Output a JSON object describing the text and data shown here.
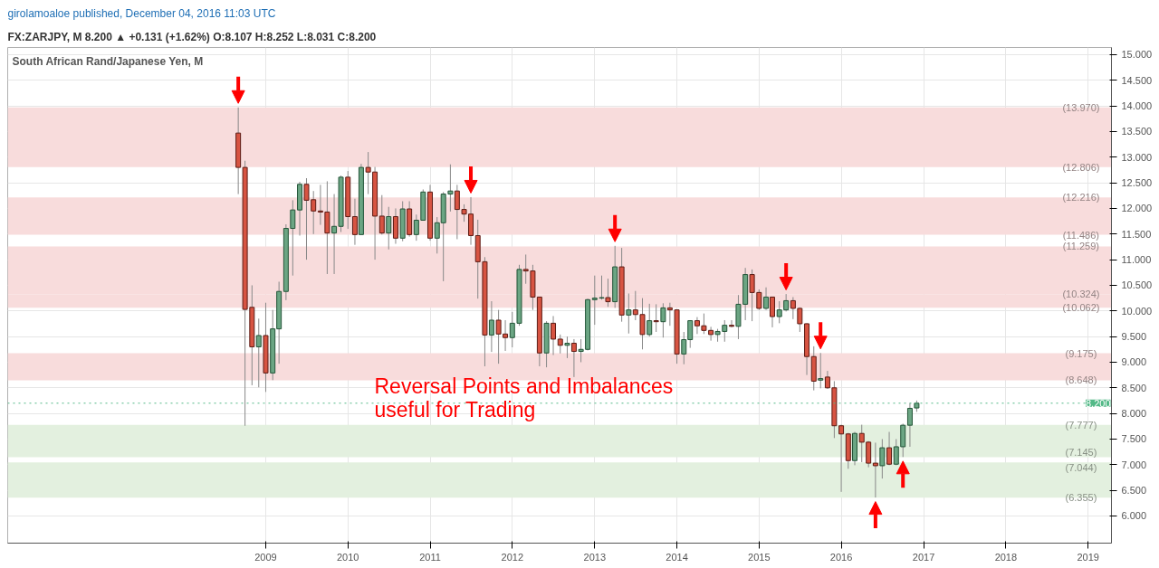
{
  "chart_data": {
    "type": "candlestick",
    "title": "South African Rand/Japanese Yen, M",
    "subtitle": "FX:ZARJPY, M 8.200 ▲ +0.131 (+1.62%) O:8.107 H:8.252 L:8.031 C:8.200",
    "x": [
      "2008-09",
      "2008-10",
      "2008-11",
      "2008-12",
      "2009-01",
      "2009-02",
      "2009-03",
      "2009-04",
      "2009-05",
      "2009-06",
      "2009-07",
      "2009-08",
      "2009-09",
      "2009-10",
      "2009-11",
      "2009-12",
      "2010-01",
      "2010-02",
      "2010-03",
      "2010-04",
      "2010-05",
      "2010-06",
      "2010-07",
      "2010-08",
      "2010-09",
      "2010-10",
      "2010-11",
      "2010-12",
      "2011-01",
      "2011-02",
      "2011-03",
      "2011-04",
      "2011-05",
      "2011-06",
      "2011-07",
      "2011-08",
      "2011-09",
      "2011-10",
      "2011-11",
      "2011-12",
      "2012-01",
      "2012-02",
      "2012-03",
      "2012-04",
      "2012-05",
      "2012-06",
      "2012-07",
      "2012-08",
      "2012-09",
      "2012-10",
      "2012-11",
      "2012-12",
      "2013-01",
      "2013-02",
      "2013-03",
      "2013-04",
      "2013-05",
      "2013-06",
      "2013-07",
      "2013-08",
      "2013-09",
      "2013-10",
      "2013-11",
      "2013-12",
      "2014-01",
      "2014-02",
      "2014-03",
      "2014-04",
      "2014-05",
      "2014-06",
      "2014-07",
      "2014-08",
      "2014-09",
      "2014-10",
      "2014-11",
      "2014-12",
      "2015-01",
      "2015-02",
      "2015-03",
      "2015-04",
      "2015-05",
      "2015-06",
      "2015-07",
      "2015-08",
      "2015-09",
      "2015-10",
      "2015-11",
      "2015-12",
      "2016-01",
      "2016-02",
      "2016-03",
      "2016-04",
      "2016-05",
      "2016-06",
      "2016-07",
      "2016-08",
      "2016-09",
      "2016-10",
      "2016-11",
      "2016-12"
    ],
    "ohlc": [
      [
        13.47,
        13.97,
        12.28,
        12.8
      ],
      [
        12.8,
        12.93,
        7.76,
        10.03
      ],
      [
        10.07,
        10.5,
        8.55,
        9.3
      ],
      [
        9.3,
        9.85,
        8.51,
        9.52
      ],
      [
        9.52,
        10.16,
        8.42,
        8.79
      ],
      [
        8.79,
        10.02,
        8.65,
        9.65
      ],
      [
        9.65,
        10.57,
        8.97,
        10.38
      ],
      [
        10.38,
        11.69,
        10.21,
        11.61
      ],
      [
        11.61,
        12.16,
        10.69,
        11.97
      ],
      [
        11.97,
        12.52,
        11.47,
        12.47
      ],
      [
        12.47,
        12.59,
        11.0,
        12.16
      ],
      [
        12.17,
        12.34,
        11.5,
        11.95
      ],
      [
        11.95,
        12.46,
        11.68,
        11.93
      ],
      [
        11.93,
        12.53,
        10.72,
        11.52
      ],
      [
        11.52,
        12.28,
        10.72,
        11.65
      ],
      [
        11.65,
        12.64,
        11.54,
        12.61
      ],
      [
        12.61,
        12.73,
        11.6,
        11.84
      ],
      [
        11.84,
        12.19,
        11.29,
        11.49
      ],
      [
        11.49,
        12.87,
        11.49,
        12.8
      ],
      [
        12.8,
        13.1,
        12.28,
        12.71
      ],
      [
        12.71,
        12.81,
        11.0,
        11.85
      ],
      [
        11.85,
        12.26,
        11.49,
        11.52
      ],
      [
        11.52,
        12.03,
        11.2,
        11.84
      ],
      [
        11.84,
        12.0,
        11.31,
        11.42
      ],
      [
        11.42,
        12.14,
        11.36,
        11.99
      ],
      [
        11.99,
        12.14,
        11.45,
        11.49
      ],
      [
        11.49,
        11.88,
        11.37,
        11.77
      ],
      [
        11.77,
        12.37,
        11.77,
        12.32
      ],
      [
        12.32,
        12.46,
        11.37,
        11.42
      ],
      [
        11.42,
        11.83,
        11.12,
        11.72
      ],
      [
        11.72,
        12.32,
        10.58,
        12.28
      ],
      [
        12.28,
        12.86,
        11.94,
        12.34
      ],
      [
        12.34,
        12.46,
        11.4,
        11.98
      ],
      [
        11.98,
        12.08,
        11.74,
        11.89
      ],
      [
        11.89,
        12.22,
        11.29,
        11.47
      ],
      [
        11.47,
        11.78,
        10.24,
        10.96
      ],
      [
        10.96,
        11.05,
        8.92,
        9.53
      ],
      [
        9.53,
        10.19,
        9.2,
        9.82
      ],
      [
        9.82,
        10.02,
        8.97,
        9.55
      ],
      [
        9.55,
        9.82,
        9.22,
        9.48
      ],
      [
        9.48,
        9.98,
        9.29,
        9.76
      ],
      [
        9.76,
        10.9,
        9.71,
        10.81
      ],
      [
        10.81,
        11.1,
        10.53,
        10.78
      ],
      [
        10.78,
        10.9,
        10.02,
        10.27
      ],
      [
        10.27,
        10.27,
        8.92,
        9.18
      ],
      [
        9.18,
        9.8,
        8.9,
        9.76
      ],
      [
        9.76,
        9.9,
        9.14,
        9.45
      ],
      [
        9.45,
        9.54,
        9.17,
        9.33
      ],
      [
        9.33,
        9.5,
        9.08,
        9.37
      ],
      [
        9.37,
        9.45,
        8.71,
        9.21
      ],
      [
        9.21,
        9.45,
        9.0,
        9.25
      ],
      [
        9.25,
        10.24,
        9.23,
        10.22
      ],
      [
        10.22,
        10.69,
        9.73,
        10.25
      ],
      [
        10.25,
        10.69,
        10.22,
        10.26
      ],
      [
        10.26,
        10.63,
        10.08,
        10.18
      ],
      [
        10.18,
        11.27,
        10.06,
        10.86
      ],
      [
        10.86,
        11.23,
        9.79,
        9.92
      ],
      [
        9.92,
        10.34,
        9.56,
        10.02
      ],
      [
        10.02,
        10.39,
        9.82,
        9.93
      ],
      [
        9.93,
        10.25,
        9.25,
        9.54
      ],
      [
        9.54,
        10.14,
        9.5,
        9.81
      ],
      [
        9.81,
        10.13,
        9.59,
        9.79
      ],
      [
        9.79,
        10.15,
        9.48,
        10.06
      ],
      [
        10.06,
        10.16,
        9.71,
        10.02
      ],
      [
        10.02,
        10.03,
        8.97,
        9.16
      ],
      [
        9.16,
        9.59,
        8.96,
        9.44
      ],
      [
        9.44,
        9.82,
        9.28,
        9.81
      ],
      [
        9.81,
        9.88,
        9.55,
        9.71
      ],
      [
        9.71,
        9.95,
        9.55,
        9.62
      ],
      [
        9.62,
        9.69,
        9.42,
        9.54
      ],
      [
        9.54,
        9.65,
        9.4,
        9.6
      ],
      [
        9.6,
        9.82,
        9.4,
        9.72
      ],
      [
        9.72,
        9.82,
        9.68,
        9.7
      ],
      [
        9.7,
        10.31,
        9.45,
        10.13
      ],
      [
        10.13,
        10.84,
        9.82,
        10.71
      ],
      [
        10.71,
        10.81,
        9.8,
        10.36
      ],
      [
        10.36,
        10.42,
        10.02,
        10.05
      ],
      [
        10.05,
        10.46,
        10.02,
        10.27
      ],
      [
        10.27,
        10.27,
        9.68,
        9.89
      ],
      [
        9.89,
        10.19,
        9.76,
        10.02
      ],
      [
        10.02,
        10.33,
        9.99,
        10.2
      ],
      [
        10.2,
        10.27,
        9.84,
        10.05
      ],
      [
        10.05,
        10.07,
        9.59,
        9.75
      ],
      [
        9.75,
        9.76,
        8.75,
        9.11
      ],
      [
        9.11,
        9.31,
        8.45,
        8.63
      ],
      [
        8.65,
        9.18,
        8.49,
        8.68
      ],
      [
        8.71,
        8.83,
        8.48,
        8.5
      ],
      [
        8.5,
        8.63,
        7.52,
        7.76
      ],
      [
        7.76,
        7.78,
        6.47,
        7.6
      ],
      [
        7.6,
        7.62,
        6.92,
        7.08
      ],
      [
        7.08,
        7.64,
        6.99,
        7.61
      ],
      [
        7.61,
        7.78,
        7.05,
        7.44
      ],
      [
        7.44,
        7.46,
        6.95,
        7.03
      ],
      [
        7.03,
        7.43,
        6.36,
        6.98
      ],
      [
        6.98,
        7.5,
        6.73,
        7.33
      ],
      [
        7.33,
        7.64,
        6.99,
        7.01
      ],
      [
        7.01,
        7.5,
        6.99,
        7.35
      ],
      [
        7.35,
        7.8,
        7.15,
        7.77
      ],
      [
        7.77,
        8.2,
        7.35,
        8.1
      ],
      [
        8.107,
        8.252,
        8.031,
        8.2
      ]
    ],
    "xlim": [
      "2005-11-12",
      "2019-04-15"
    ],
    "xticks": [
      {
        "value": "2009",
        "label": "2009"
      },
      {
        "value": "2010",
        "label": "2010"
      },
      {
        "value": "2011",
        "label": "2011"
      },
      {
        "value": "2012",
        "label": "2012"
      },
      {
        "value": "2013",
        "label": "2013"
      },
      {
        "value": "2014",
        "label": "2014"
      },
      {
        "value": "2015",
        "label": "2015"
      },
      {
        "value": "2016",
        "label": "2016"
      },
      {
        "value": "2017",
        "label": "2017"
      },
      {
        "value": "2018",
        "label": "2018"
      },
      {
        "value": "2019",
        "label": "2019"
      }
    ],
    "ylim": [
      5.47,
      15.14
    ],
    "yticks": [
      {
        "value": 6,
        "label": "6.000"
      },
      {
        "value": 6.5,
        "label": "6.500"
      },
      {
        "value": 7,
        "label": "7.000"
      },
      {
        "value": 7.5,
        "label": "7.500"
      },
      {
        "value": 8,
        "label": "8.000"
      },
      {
        "value": 8.5,
        "label": "8.500"
      },
      {
        "value": 9,
        "label": "9.000"
      },
      {
        "value": 9.5,
        "label": "9.500"
      },
      {
        "value": 10,
        "label": "10.000"
      },
      {
        "value": 10.5,
        "label": "10.500"
      },
      {
        "value": 11,
        "label": "11.000"
      },
      {
        "value": 11.5,
        "label": "11.500"
      },
      {
        "value": 12,
        "label": "12.000"
      },
      {
        "value": 12.5,
        "label": "12.500"
      },
      {
        "value": 13,
        "label": "13.000"
      },
      {
        "value": 13.5,
        "label": "13.500"
      },
      {
        "value": 14,
        "label": "14.000"
      },
      {
        "value": 14.5,
        "label": "14.500"
      },
      {
        "value": 15,
        "label": "15.000"
      }
    ],
    "grid": true,
    "bands": [
      {
        "axis": "y",
        "from": 12.806,
        "to": 13.97,
        "color": "#f8dcdc"
      },
      {
        "axis": "y",
        "from": 11.486,
        "to": 12.216,
        "color": "#f8dcdc"
      },
      {
        "axis": "y",
        "from": 10.324,
        "to": 11.259,
        "color": "#f8dcdc"
      },
      {
        "axis": "y",
        "from": 10.062,
        "to": 10.324,
        "color": "#f8dcdc"
      },
      {
        "axis": "y",
        "from": 8.648,
        "to": 9.175,
        "color": "#f8dcdc"
      },
      {
        "axis": "y",
        "from": 7.145,
        "to": 7.777,
        "color": "#e3f0df"
      },
      {
        "axis": "y",
        "from": 6.355,
        "to": 7.044,
        "color": "#e3f0df"
      }
    ],
    "ref_lines": [
      {
        "axis": "y",
        "value": 8.2,
        "label": "8.200",
        "color": "#53b987",
        "line_style": "dotted"
      }
    ],
    "annotations": [
      "girolamoaloe published, December 04, 2016 11:03 UTC",
      "Reversal Points and Imbalances\nuseful for Trading",
      {
        "text": "(13.970)",
        "x": "2018-12",
        "y": 13.97
      },
      {
        "text": "(12.806)",
        "x": "2018-12",
        "y": 12.806
      },
      {
        "text": "(12.216)",
        "x": "2018-12",
        "y": 12.216
      },
      {
        "text": "(11.486)",
        "x": "2018-12",
        "y": 11.486
      },
      {
        "text": "(11.259)",
        "x": "2018-12",
        "y": 11.259
      },
      {
        "text": "(10.324)",
        "x": "2018-12",
        "y": 10.324
      },
      {
        "text": "(10.062)",
        "x": "2018-12",
        "y": 10.062
      },
      {
        "text": "(9.175)",
        "x": "2018-12",
        "y": 9.175
      },
      {
        "text": "(8.648)",
        "x": "2018-12",
        "y": 8.648
      },
      {
        "text": "(7.777)",
        "x": "2018-12",
        "y": 7.777
      },
      {
        "text": "(7.145)",
        "x": "2018-12",
        "y": 7.145
      },
      {
        "text": "(7.044)",
        "x": "2018-12",
        "y": 7.044
      },
      {
        "text": "(6.355)",
        "x": "2018-12",
        "y": 6.355
      }
    ]
  }
}
